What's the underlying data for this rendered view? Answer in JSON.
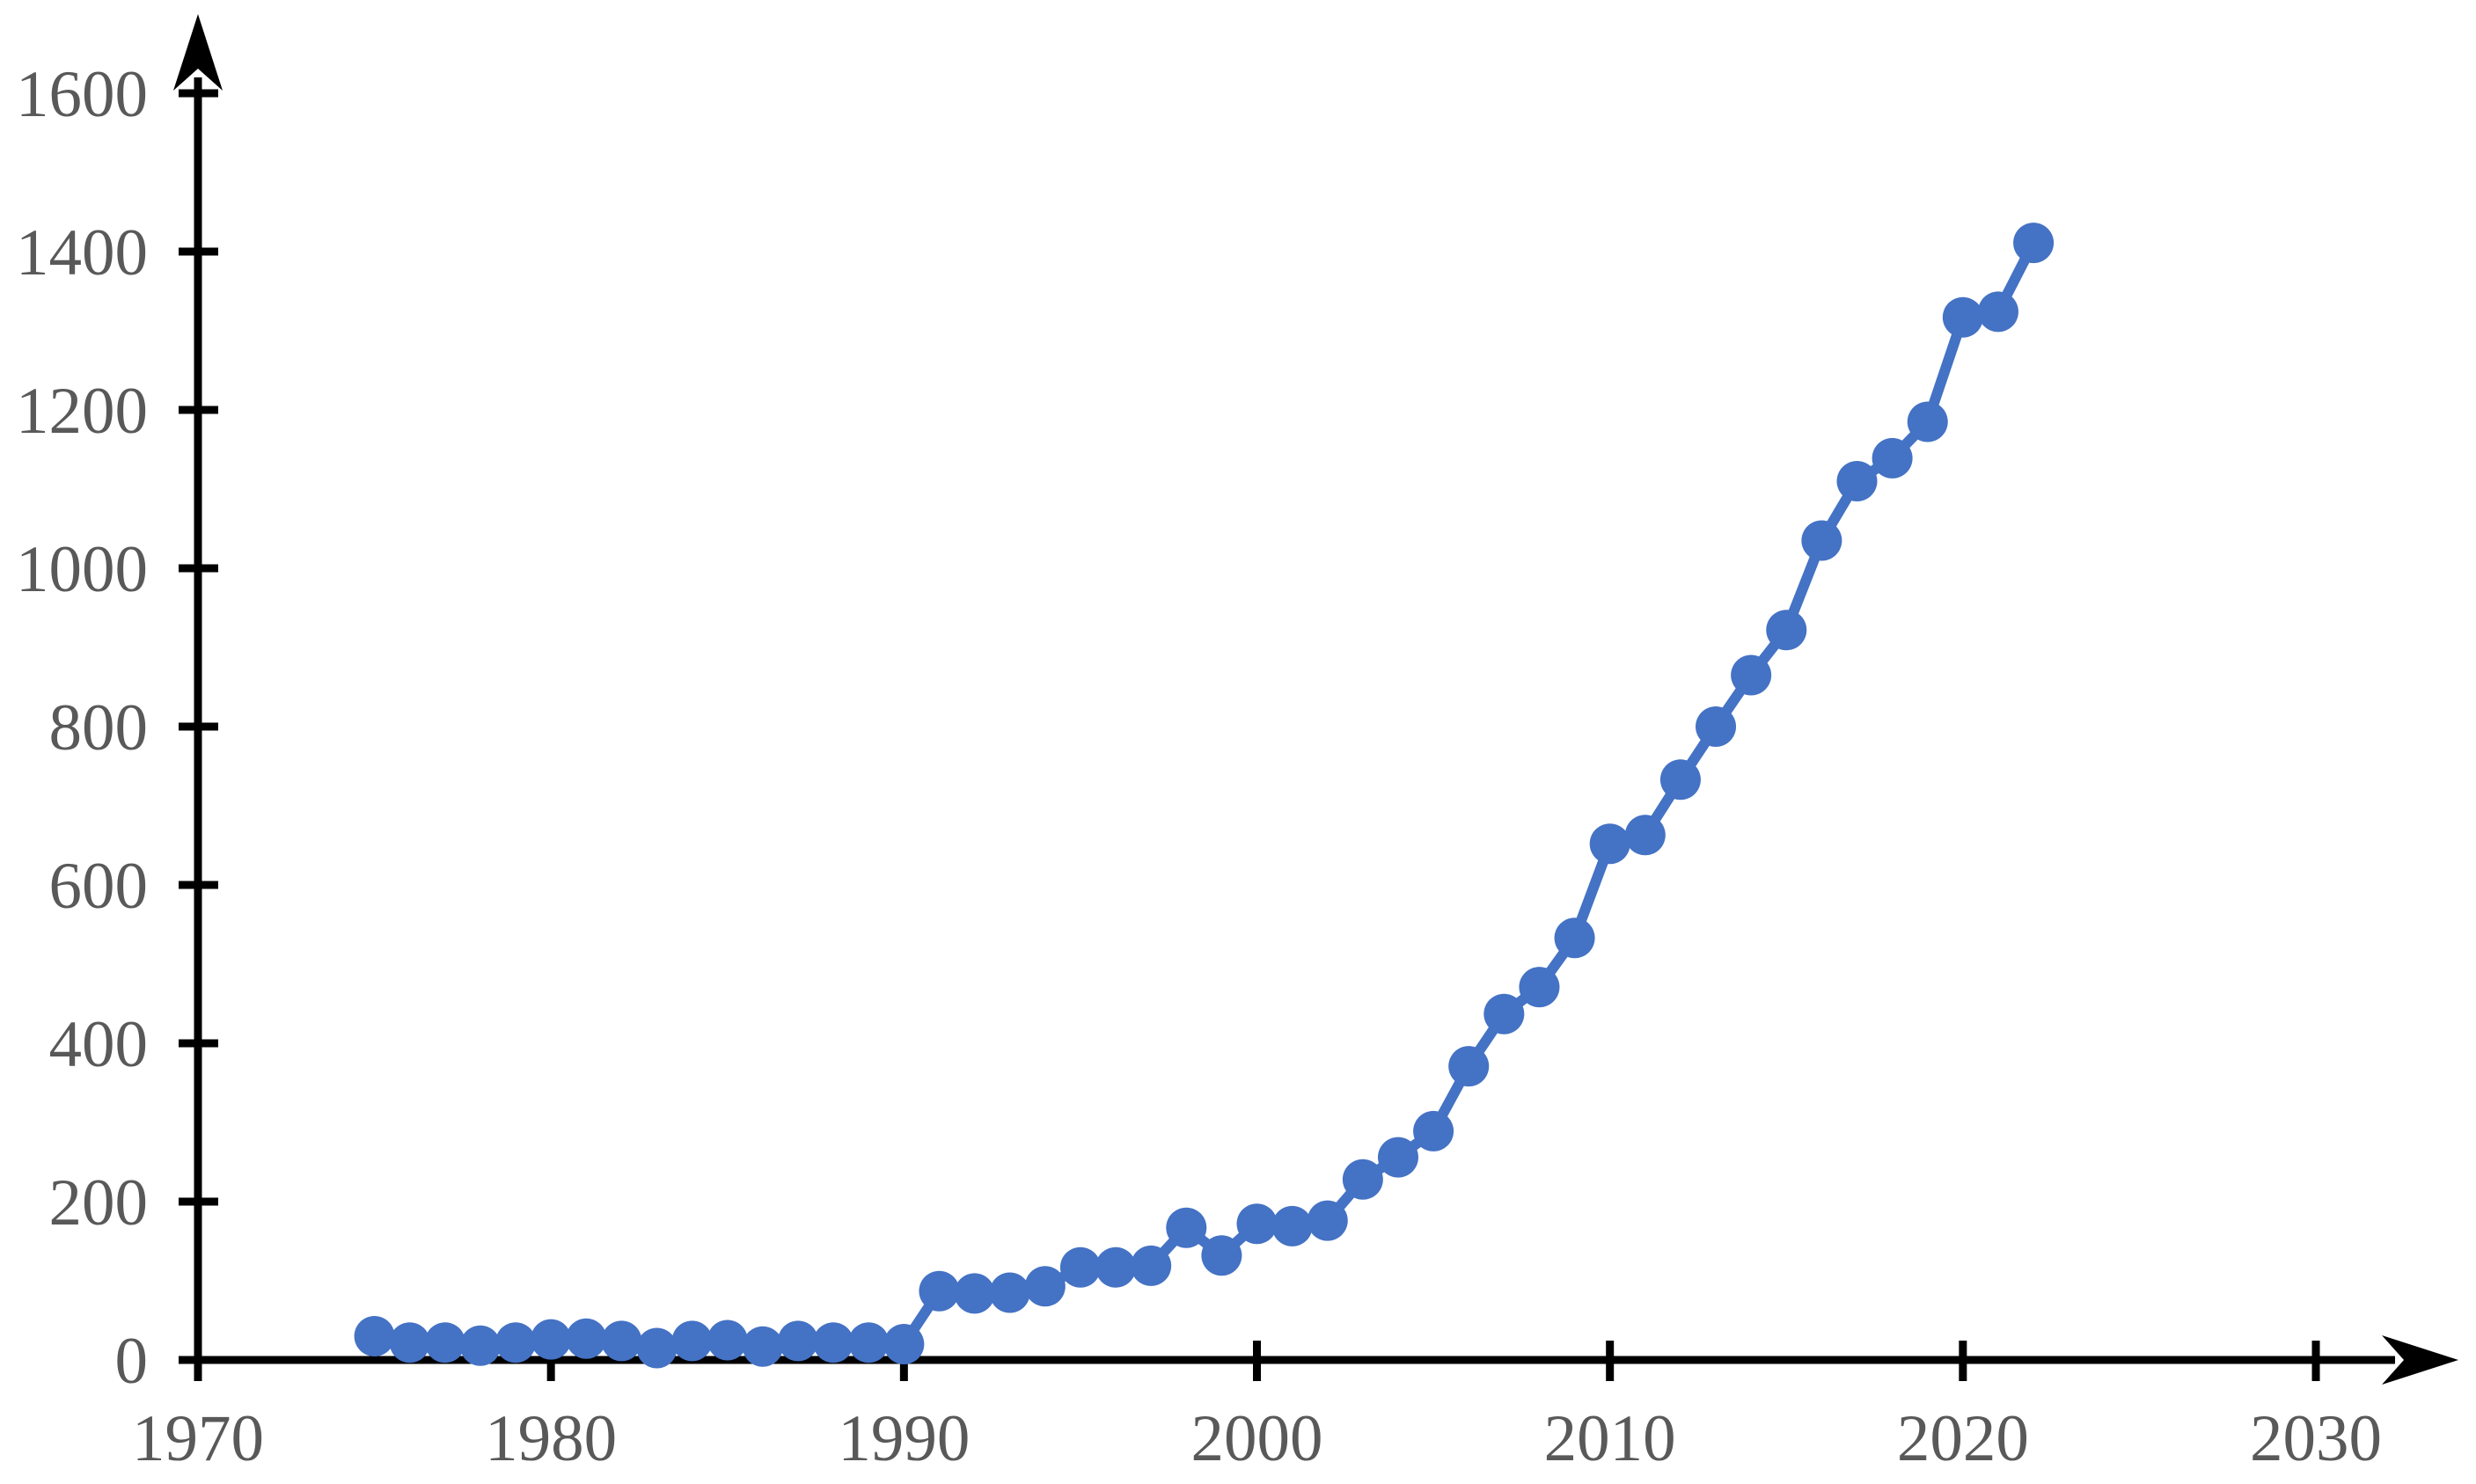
{
  "chart_data": {
    "type": "line",
    "title": "",
    "subtitle": "",
    "xlabel": "",
    "ylabel": "",
    "legend": null,
    "grid": false,
    "x": [
      1975,
      1976,
      1977,
      1978,
      1979,
      1980,
      1981,
      1982,
      1983,
      1984,
      1985,
      1986,
      1987,
      1988,
      1989,
      1990,
      1991,
      1992,
      1993,
      1994,
      1995,
      1996,
      1997,
      1998,
      1999,
      2000,
      2001,
      2002,
      2003,
      2004,
      2005,
      2006,
      2007,
      2008,
      2009,
      2010,
      2011,
      2012,
      2013,
      2014,
      2015,
      2016,
      2017,
      2018,
      2019,
      2020,
      2021,
      2022
    ],
    "values": [
      30,
      22,
      22,
      18,
      22,
      26,
      27,
      24,
      15,
      24,
      25,
      17,
      24,
      22,
      22,
      20,
      87,
      84,
      85,
      93,
      117,
      117,
      119,
      167,
      132,
      172,
      169,
      176,
      228,
      256,
      289,
      371,
      437,
      471,
      533,
      652,
      663,
      733,
      800,
      865,
      922,
      1035,
      1110,
      1139,
      1185,
      1317,
      1324,
      1411
    ],
    "x_ticks": [
      1970,
      1980,
      1990,
      2000,
      2010,
      2020,
      2030
    ],
    "y_ticks": [
      0,
      200,
      400,
      600,
      800,
      1000,
      1200,
      1400,
      1600
    ],
    "xlim": [
      1970,
      2034
    ],
    "ylim": [
      0,
      1700
    ],
    "marker": "circle",
    "colors": {
      "series": "#4472C4",
      "axis": "#000000",
      "tick_label": "#595959"
    }
  }
}
